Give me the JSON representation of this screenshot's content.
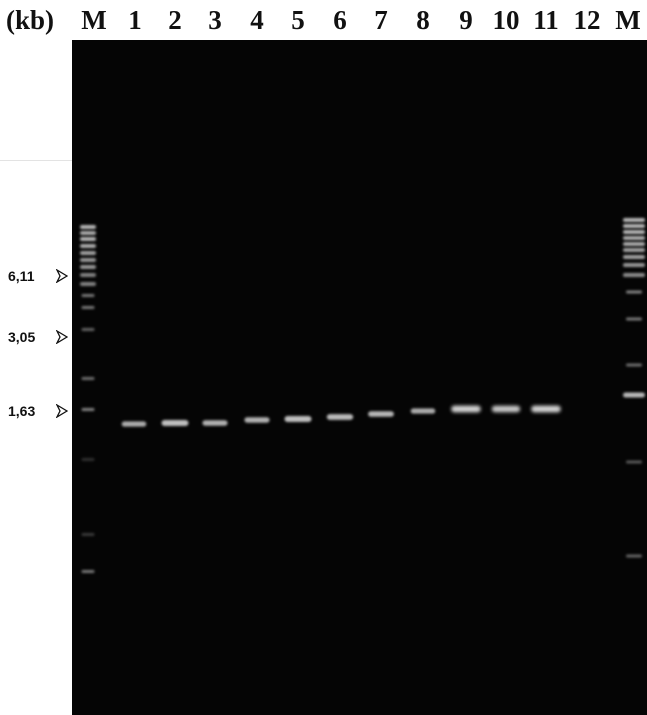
{
  "figure": {
    "unit_label": "(kb)",
    "lanes": [
      "M",
      "1",
      "2",
      "3",
      "4",
      "5",
      "6",
      "7",
      "8",
      "9",
      "10",
      "11",
      "12",
      "M"
    ],
    "size_markers": [
      {
        "label": "6,11",
        "kb": 6.11
      },
      {
        "label": "3,05",
        "kb": 3.05
      },
      {
        "label": "1,63",
        "kb": 1.63
      }
    ],
    "sample_band_kb": 1.63,
    "sample_band_intensity": [
      0.55,
      0.75,
      0.6,
      0.6,
      0.75,
      0.7,
      0.65,
      0.55,
      0.95,
      0.85,
      0.95,
      0
    ],
    "colors": {
      "gel": "#050505",
      "band": "#d8d8d8",
      "text": "#111111"
    },
    "icons": {
      "marker_arrow": "arrowhead-right-icon"
    }
  }
}
